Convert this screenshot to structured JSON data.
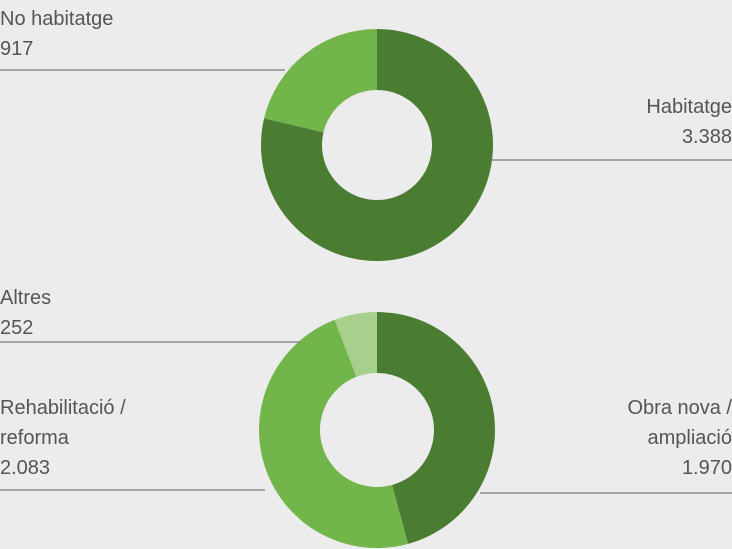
{
  "chart_data": [
    {
      "type": "donut",
      "categories": [
        "Habitatge",
        "No habitatge"
      ],
      "values": [
        3388,
        917
      ],
      "value_labels": [
        "3.388",
        "917"
      ],
      "colors": [
        "#4a7c32",
        "#72b54a"
      ]
    },
    {
      "type": "donut",
      "categories": [
        "Obra nova / ampliació",
        "Rehabilitació / reforma",
        "Altres"
      ],
      "values": [
        1970,
        2083,
        252
      ],
      "value_labels": [
        "1.970",
        "2.083",
        "252"
      ],
      "colors": [
        "#4a7c32",
        "#72b54a",
        "#a8d08d"
      ]
    }
  ]
}
